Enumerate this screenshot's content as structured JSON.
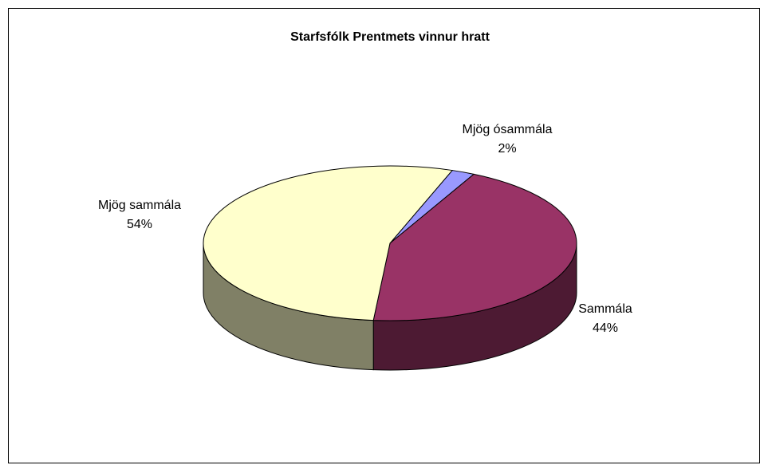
{
  "chart_data": {
    "type": "pie",
    "title": "Starfsfólk Prentmets vinnur hratt",
    "categories": [
      "Mjög ósammála",
      "Sammála",
      "Mjög sammála"
    ],
    "values": [
      2,
      44,
      54
    ],
    "value_labels": [
      "2%",
      "44%",
      "54%"
    ],
    "colors": [
      "#9999ff",
      "#993366",
      "#ffffcc"
    ]
  }
}
